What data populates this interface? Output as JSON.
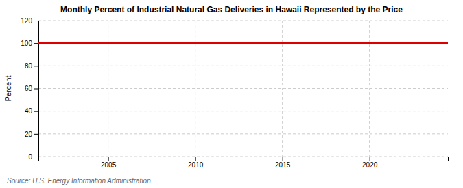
{
  "chart_data": {
    "type": "line",
    "title": "Monthly Percent of Industrial Natural Gas Deliveries in Hawaii Represented by the Price",
    "y_label": "Percent",
    "source": "Source: U.S. Energy Information Administration",
    "x": [
      2001.0,
      2024.5
    ],
    "values": [
      100,
      100
    ],
    "color": "#dd0000",
    "xlim": [
      2001.0,
      2024.5
    ],
    "ylim": [
      0,
      120
    ],
    "xticks": [
      2005,
      2010,
      2015,
      2020
    ],
    "yticks": [
      0,
      20,
      40,
      60,
      80,
      100,
      120
    ],
    "grid": true
  }
}
